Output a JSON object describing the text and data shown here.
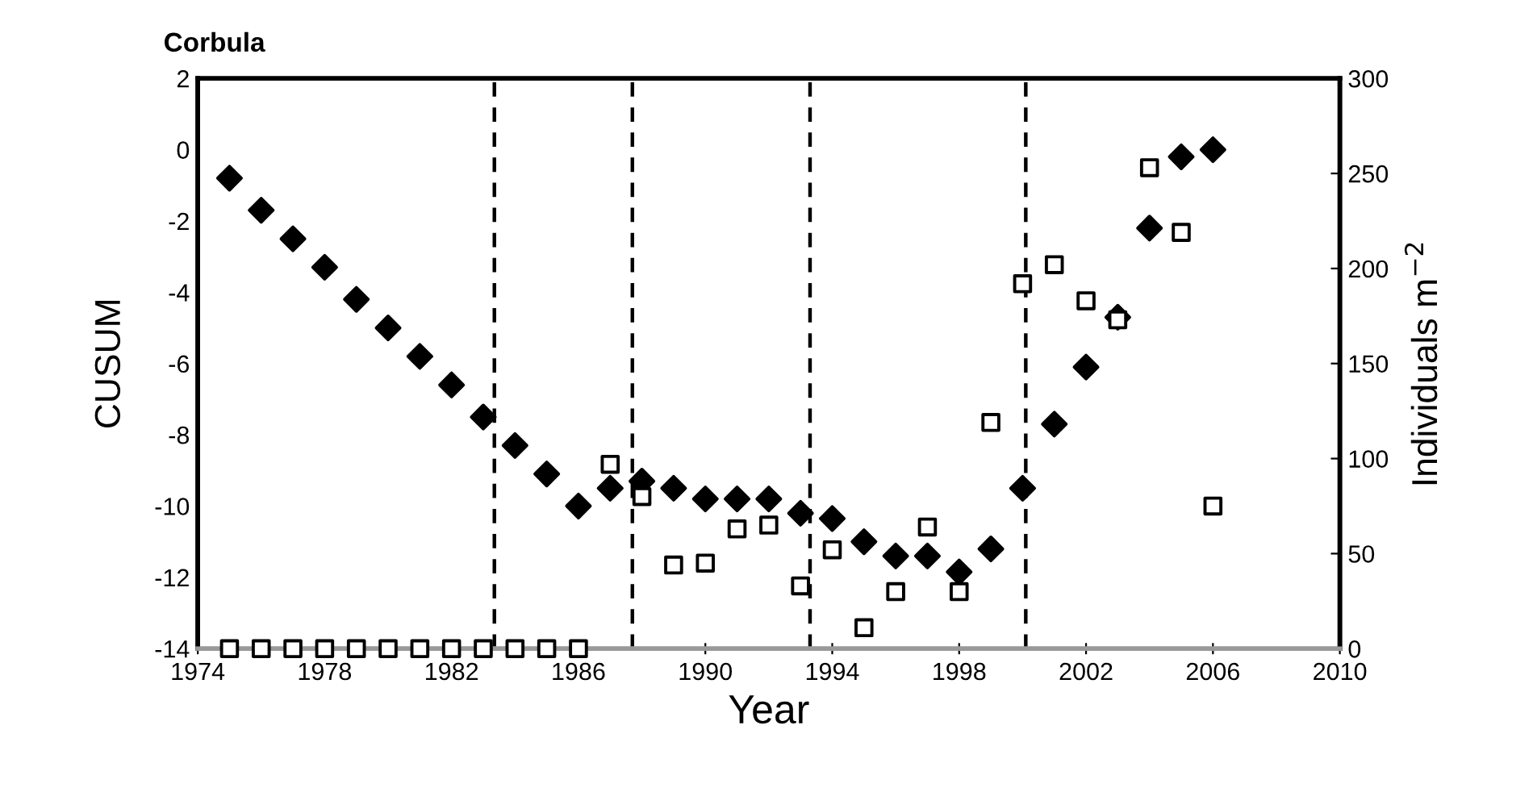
{
  "chart_data": {
    "type": "scatter",
    "title": "Corbula",
    "xlabel": "Year",
    "ylabel": "CUSUM",
    "y2label": "Individuals m$^{−2}$",
    "x": [
      1975,
      1976,
      1977,
      1978,
      1979,
      1980,
      1981,
      1982,
      1983,
      1984,
      1985,
      1986,
      1987,
      1988,
      1989,
      1990,
      1991,
      1992,
      1993,
      1994,
      1995,
      1996,
      1997,
      1998,
      1999,
      2000,
      2001,
      2002,
      2003,
      2004,
      2005,
      2006
    ],
    "series": [
      {
        "color": "#000000",
        "marker": "diamond",
        "values": [
          -0.8,
          -1.7,
          -2.5,
          -3.3,
          -4.2,
          -5.0,
          -5.8,
          -6.6,
          -7.5,
          -8.3,
          -9.1,
          -10.0,
          -9.5,
          -9.3,
          -9.5,
          -9.8,
          -9.8,
          -9.8,
          -10.2,
          -10.35,
          -11.0,
          -11.4,
          -11.4,
          -11.85,
          -11.2,
          -9.5,
          -7.7,
          -6.1,
          -4.7,
          -2.2,
          -0.2,
          0.0
        ]
      },
      {
        "color": "#000000",
        "marker": "square",
        "axis": "y2",
        "values": [
          0,
          0,
          0,
          0,
          0,
          0,
          0,
          0,
          0,
          0,
          0,
          0,
          97,
          80,
          44,
          45,
          63,
          65,
          33,
          52,
          11,
          30,
          64,
          30,
          119,
          192,
          202,
          183,
          173,
          253,
          219,
          75
        ]
      }
    ],
    "xlim": [
      1974,
      2010
    ],
    "xticks": [
      1974,
      1978,
      1982,
      1986,
      1990,
      1994,
      1998,
      2002,
      2006,
      2010
    ],
    "ylim": [
      -14,
      2
    ],
    "yticks": [
      -14,
      -12,
      -10,
      -8,
      -6,
      -4,
      -2,
      0,
      2
    ],
    "y2lim": [
      0,
      300
    ],
    "y2ticks": [
      0,
      50,
      100,
      150,
      200,
      250,
      300
    ],
    "ref_lines": [
      {
        "axis": "x",
        "value": 1983.35,
        "color": "#000000",
        "line_style": "dashed"
      },
      {
        "axis": "x",
        "value": 1987.7,
        "color": "#000000",
        "line_style": "dashed"
      },
      {
        "axis": "x",
        "value": 1993.3,
        "color": "#000000",
        "line_style": "dashed"
      },
      {
        "axis": "x",
        "value": 2000.1,
        "color": "#000000",
        "line_style": "dashed"
      }
    ],
    "grid": false,
    "legend": false
  }
}
